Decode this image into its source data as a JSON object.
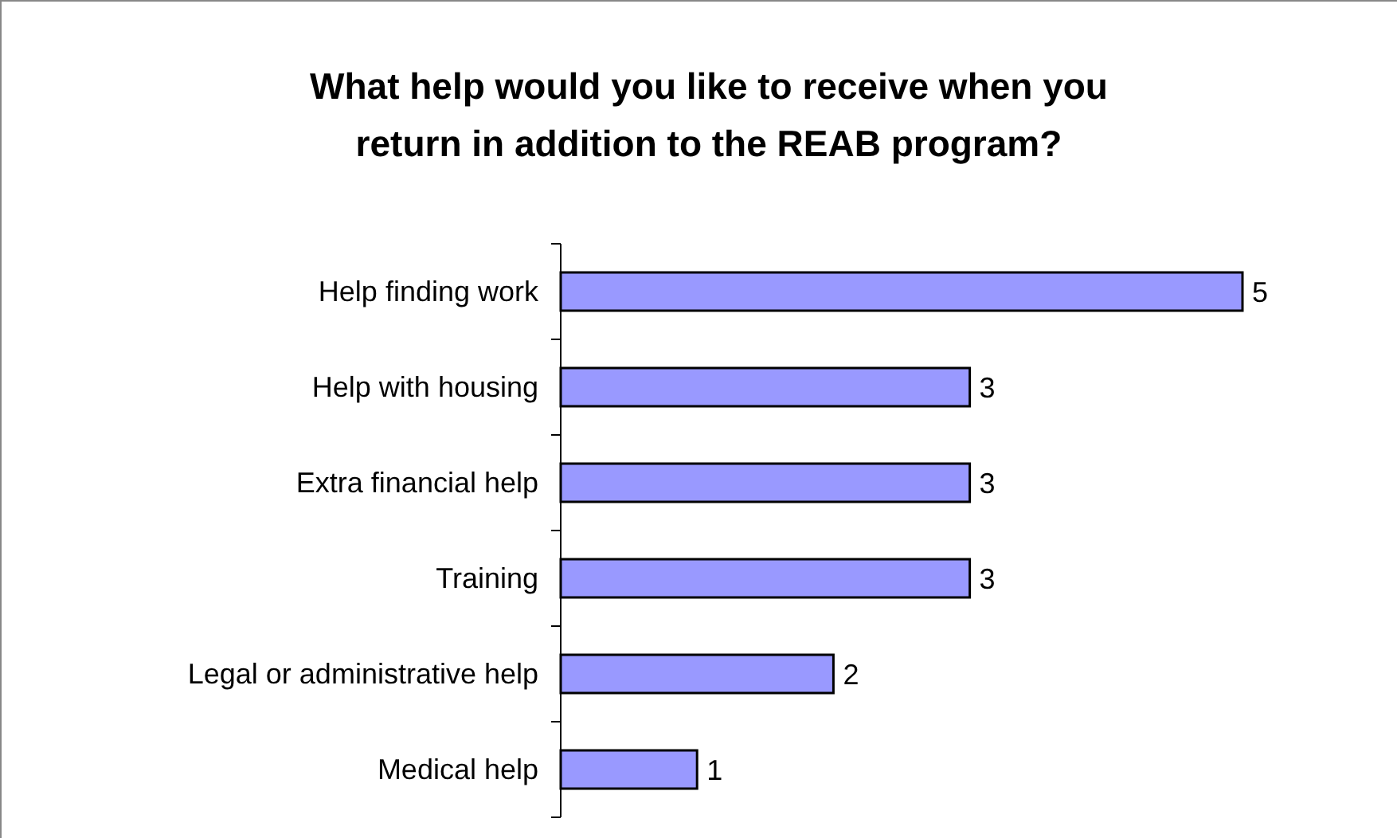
{
  "chart_data": {
    "type": "bar",
    "orientation": "horizontal",
    "title": "What help would you like to receive when you return in addition to the REAB program?",
    "categories": [
      "Help finding work",
      "Help with housing",
      "Extra financial help",
      "Training",
      "Legal or administrative help",
      "Medical help"
    ],
    "values": [
      5,
      3,
      3,
      3,
      2,
      1
    ],
    "color": "#9999ff",
    "data_labels": true
  }
}
